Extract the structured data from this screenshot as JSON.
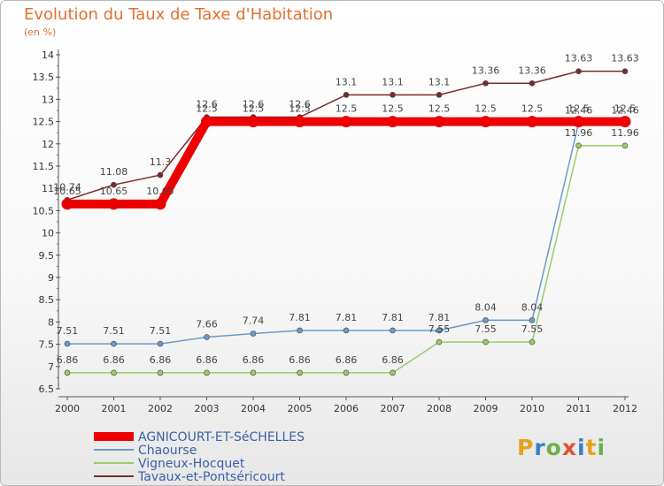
{
  "logo_text": "Proxiti",
  "chart_data": {
    "type": "line",
    "title": "Evolution du Taux de Taxe d'Habitation",
    "subtitle": "(en %)",
    "x": [
      "2000",
      "2001",
      "2002",
      "2003",
      "2004",
      "2005",
      "2006",
      "2007",
      "2008",
      "2009",
      "2010",
      "2011",
      "2012"
    ],
    "ylim": [
      6.5,
      14
    ],
    "yticks": [
      "6.5",
      "7",
      "7.5",
      "8",
      "8.5",
      "9",
      "9.5",
      "10",
      "10.5",
      "11",
      "11.5",
      "12",
      "12.5",
      "13",
      "13.5",
      "14"
    ],
    "grid": false,
    "legend": "bottom-left",
    "series": [
      {
        "name": "AGNICOURT-ET-SéCHELLES",
        "color": "#ee0000",
        "values": [
          10.65,
          10.65,
          10.65,
          12.5,
          12.5,
          12.5,
          12.5,
          12.5,
          12.5,
          12.5,
          12.5,
          12.5,
          12.5
        ],
        "labels": [
          "10.65",
          "10.65",
          "10.65",
          "12.5",
          "12.5",
          "12.5",
          "12.5",
          "12.5",
          "12.5",
          "12.5",
          "12.5",
          "12.5",
          "12.5"
        ]
      },
      {
        "name": "Chaourse",
        "color": "#6a9ac8",
        "values": [
          7.51,
          7.51,
          7.51,
          7.66,
          7.74,
          7.81,
          7.81,
          7.81,
          7.81,
          8.04,
          8.04,
          12.46,
          12.46
        ],
        "labels": [
          "7.51",
          "7.51",
          "7.51",
          "7.66",
          "7.74",
          "7.81",
          "7.81",
          "7.81",
          "7.81",
          "8.04",
          "8.04",
          "12.46",
          "12.46"
        ]
      },
      {
        "name": "Vigneux-Hocquet",
        "color": "#99cc66",
        "values": [
          6.86,
          6.86,
          6.86,
          6.86,
          6.86,
          6.86,
          6.86,
          6.86,
          7.55,
          7.55,
          7.55,
          11.96,
          11.96
        ],
        "labels": [
          "6.86",
          "6.86",
          "6.86",
          "6.86",
          "6.86",
          "6.86",
          "6.86",
          "6.86",
          "7.55",
          "7.55",
          "7.55",
          "11.96",
          "11.96"
        ]
      },
      {
        "name": "Tavaux-et-Pontséricourt",
        "color": "#7a2a2a",
        "values": [
          10.74,
          11.08,
          11.3,
          12.6,
          12.6,
          12.6,
          13.1,
          13.1,
          13.1,
          13.36,
          13.36,
          13.63,
          13.63
        ],
        "labels": [
          "10.74",
          "11.08",
          "11.3",
          "12.6",
          "12.6",
          "12.6",
          "13.1",
          "13.1",
          "13.1",
          "13.36",
          "13.36",
          "13.63",
          "13.63"
        ]
      }
    ]
  }
}
